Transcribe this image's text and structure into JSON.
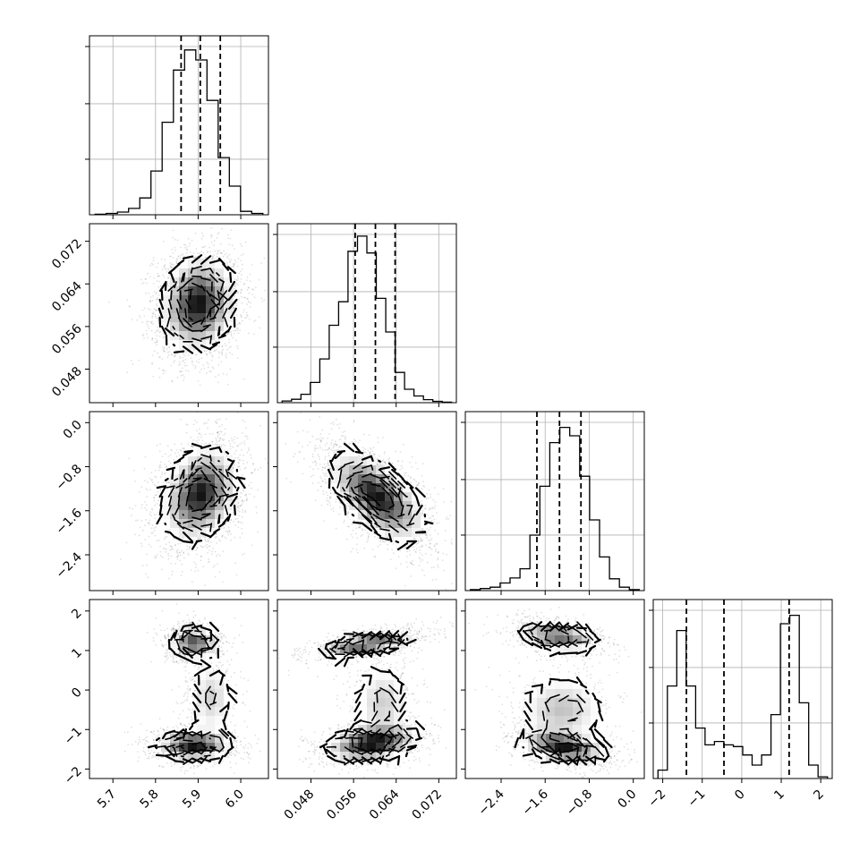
{
  "chart_data": {
    "type": "corner",
    "grid": true,
    "parameters": [
      {
        "key": "p0",
        "range": [
          5.645,
          6.065
        ],
        "ticks": [
          5.7,
          5.8,
          5.9,
          6.0
        ],
        "tick_labels": [
          "5.7",
          "5.8",
          "5.9",
          "6.0"
        ],
        "quantiles": [
          5.86,
          5.905,
          5.952
        ]
      },
      {
        "key": "p1",
        "range": [
          0.0417,
          0.0753
        ],
        "ticks": [
          0.048,
          0.056,
          0.064,
          0.072
        ],
        "tick_labels": [
          "0.048",
          "0.056",
          "0.064",
          "0.072"
        ],
        "quantiles": [
          0.0563,
          0.0601,
          0.0638
        ]
      },
      {
        "key": "p2",
        "range": [
          -3.05,
          0.2
        ],
        "ticks": [
          -2.4,
          -1.6,
          -0.8,
          0.0
        ],
        "tick_labels": [
          "−2.4",
          "−1.6",
          "−0.8",
          "0.0"
        ],
        "quantiles": [
          -1.75,
          -1.34,
          -0.95
        ]
      },
      {
        "key": "p3",
        "range": [
          -2.24,
          2.29
        ],
        "ticks": [
          -2,
          -1,
          0,
          1,
          2
        ],
        "tick_labels": [
          "−2",
          "−1",
          "0",
          "1",
          "2"
        ],
        "quantiles": [
          -1.4,
          -0.45,
          1.2
        ]
      }
    ],
    "histograms": [
      [
        0.003,
        0.008,
        0.016,
        0.038,
        0.1,
        0.26,
        0.55,
        0.86,
        0.98,
        0.92,
        0.68,
        0.34,
        0.17,
        0.02,
        0.008
      ],
      [
        0.01,
        0.02,
        0.05,
        0.12,
        0.26,
        0.46,
        0.6,
        0.9,
        0.99,
        0.89,
        0.62,
        0.42,
        0.18,
        0.08,
        0.04,
        0.018,
        0.008,
        0.003
      ],
      [
        0.006,
        0.012,
        0.02,
        0.045,
        0.075,
        0.13,
        0.33,
        0.62,
        0.88,
        0.97,
        0.92,
        0.68,
        0.42,
        0.2,
        0.07,
        0.02,
        0.006
      ],
      [
        0.05,
        0.55,
        0.88,
        0.55,
        0.3,
        0.2,
        0.22,
        0.2,
        0.19,
        0.14,
        0.08,
        0.14,
        0.38,
        0.92,
        0.97,
        0.45,
        0.08,
        0.01
      ]
    ],
    "pairs": [
      {
        "x": 0,
        "y": 1,
        "modes": [
          {
            "mx": 5.9,
            "my": 0.0602,
            "sx": 0.045,
            "sy": 0.0046,
            "rho": 0.1,
            "w": 1
          }
        ]
      },
      {
        "x": 0,
        "y": 2,
        "modes": [
          {
            "mx": 5.905,
            "my": -1.3,
            "sx": 0.045,
            "sy": 0.44,
            "rho": 0.25,
            "w": 1
          }
        ]
      },
      {
        "x": 1,
        "y": 2,
        "modes": [
          {
            "mx": 0.0605,
            "my": -1.35,
            "sx": 0.0046,
            "sy": 0.42,
            "rho": -0.6,
            "w": 1
          }
        ]
      },
      {
        "x": 0,
        "y": 3,
        "modes": [
          {
            "mx": 5.89,
            "my": 1.2,
            "sx": 0.03,
            "sy": 0.22,
            "rho": 0.0,
            "w": 0.45
          },
          {
            "mx": 5.89,
            "my": -1.4,
            "sx": 0.045,
            "sy": 0.2,
            "rho": 0.0,
            "w": 0.55
          },
          {
            "mx": 5.93,
            "my": -0.2,
            "sx": 0.03,
            "sy": 0.55,
            "rho": 0.0,
            "w": 0.2
          }
        ]
      },
      {
        "x": 1,
        "y": 3,
        "modes": [
          {
            "mx": 0.0585,
            "my": 1.15,
            "sx": 0.005,
            "sy": 0.18,
            "rho": 0.6,
            "w": 0.45
          },
          {
            "mx": 0.0595,
            "my": -1.35,
            "sx": 0.0045,
            "sy": 0.25,
            "rho": 0.3,
            "w": 0.55
          },
          {
            "mx": 0.0615,
            "my": -0.3,
            "sx": 0.003,
            "sy": 0.55,
            "rho": 0.0,
            "w": 0.2
          }
        ]
      },
      {
        "x": 2,
        "y": 3,
        "modes": [
          {
            "mx": -1.35,
            "my": 1.35,
            "sx": 0.4,
            "sy": 0.2,
            "rho": -0.3,
            "w": 0.45
          },
          {
            "mx": -1.25,
            "my": -1.45,
            "sx": 0.4,
            "sy": 0.22,
            "rho": -0.4,
            "w": 0.55
          },
          {
            "mx": -1.3,
            "my": -0.5,
            "sx": 0.45,
            "sy": 0.5,
            "rho": 0.0,
            "w": 0.25
          }
        ]
      }
    ]
  }
}
